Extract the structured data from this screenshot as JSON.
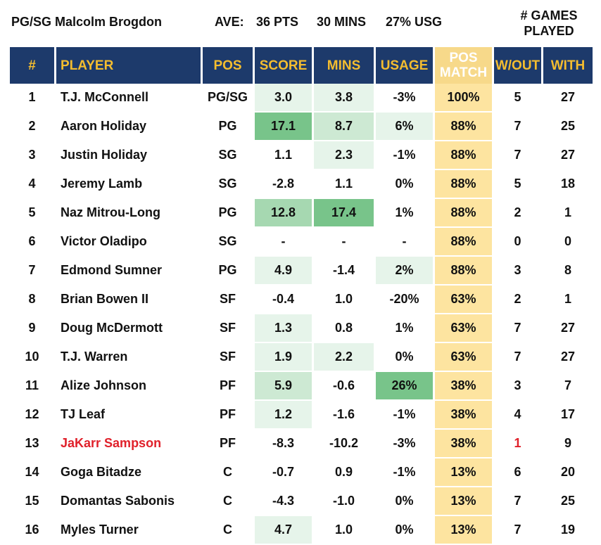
{
  "header": {
    "player_position": "PG/SG",
    "player_name": "Malcolm Brogdon",
    "ave_label": "AVE:",
    "pts": "36 PTS",
    "mins": "30 MINS",
    "usg": "27% USG",
    "games_played_label_1": "# GAMES",
    "games_played_label_2": "PLAYED"
  },
  "colors": {
    "header_bg": "#1d3a6b",
    "header_text": "#f4bd2f",
    "pos_match_bg": "#fde4a0",
    "highlight_red": "#e0202a",
    "green_1": "#e6f4ea",
    "green_2": "#cde9d3",
    "green_3": "#a6d8b1",
    "green_4": "#78c48a"
  },
  "table": {
    "columns": [
      "#",
      "PLAYER",
      "POS",
      "SCORE",
      "MINS",
      "USAGE",
      "POS MATCH",
      "W/OUT",
      "WITH"
    ],
    "rows": [
      {
        "n": "1",
        "player": "T.J. McConnell",
        "pos": "PG/SG",
        "score": "3.0",
        "mins": "3.8",
        "usage": "-3%",
        "match": "100%",
        "wout": "5",
        "with": "27",
        "score_level": 1,
        "mins_level": 1,
        "usage_level": 0,
        "red": false
      },
      {
        "n": "2",
        "player": "Aaron Holiday",
        "pos": "PG",
        "score": "17.1",
        "mins": "8.7",
        "usage": "6%",
        "match": "88%",
        "wout": "7",
        "with": "25",
        "score_level": 4,
        "mins_level": 2,
        "usage_level": 1,
        "red": false
      },
      {
        "n": "3",
        "player": "Justin Holiday",
        "pos": "SG",
        "score": "1.1",
        "mins": "2.3",
        "usage": "-1%",
        "match": "88%",
        "wout": "7",
        "with": "27",
        "score_level": 0,
        "mins_level": 1,
        "usage_level": 0,
        "red": false
      },
      {
        "n": "4",
        "player": "Jeremy Lamb",
        "pos": "SG",
        "score": "-2.8",
        "mins": "1.1",
        "usage": "0%",
        "match": "88%",
        "wout": "5",
        "with": "18",
        "score_level": 0,
        "mins_level": 0,
        "usage_level": 0,
        "red": false
      },
      {
        "n": "5",
        "player": "Naz Mitrou-Long",
        "pos": "PG",
        "score": "12.8",
        "mins": "17.4",
        "usage": "1%",
        "match": "88%",
        "wout": "2",
        "with": "1",
        "score_level": 3,
        "mins_level": 4,
        "usage_level": 0,
        "red": false
      },
      {
        "n": "6",
        "player": "Victor Oladipo",
        "pos": "SG",
        "score": "-",
        "mins": "-",
        "usage": "-",
        "match": "88%",
        "wout": "0",
        "with": "0",
        "score_level": 0,
        "mins_level": 0,
        "usage_level": 0,
        "red": false
      },
      {
        "n": "7",
        "player": "Edmond Sumner",
        "pos": "PG",
        "score": "4.9",
        "mins": "-1.4",
        "usage": "2%",
        "match": "88%",
        "wout": "3",
        "with": "8",
        "score_level": 1,
        "mins_level": 0,
        "usage_level": 1,
        "red": false
      },
      {
        "n": "8",
        "player": "Brian Bowen II",
        "pos": "SF",
        "score": "-0.4",
        "mins": "1.0",
        "usage": "-20%",
        "match": "63%",
        "wout": "2",
        "with": "1",
        "score_level": 0,
        "mins_level": 0,
        "usage_level": 0,
        "red": false
      },
      {
        "n": "9",
        "player": "Doug McDermott",
        "pos": "SF",
        "score": "1.3",
        "mins": "0.8",
        "usage": "1%",
        "match": "63%",
        "wout": "7",
        "with": "27",
        "score_level": 1,
        "mins_level": 0,
        "usage_level": 0,
        "red": false
      },
      {
        "n": "10",
        "player": "T.J. Warren",
        "pos": "SF",
        "score": "1.9",
        "mins": "2.2",
        "usage": "0%",
        "match": "63%",
        "wout": "7",
        "with": "27",
        "score_level": 1,
        "mins_level": 1,
        "usage_level": 0,
        "red": false
      },
      {
        "n": "11",
        "player": "Alize Johnson",
        "pos": "PF",
        "score": "5.9",
        "mins": "-0.6",
        "usage": "26%",
        "match": "38%",
        "wout": "3",
        "with": "7",
        "score_level": 2,
        "mins_level": 0,
        "usage_level": 4,
        "red": false
      },
      {
        "n": "12",
        "player": "TJ Leaf",
        "pos": "PF",
        "score": "1.2",
        "mins": "-1.6",
        "usage": "-1%",
        "match": "38%",
        "wout": "4",
        "with": "17",
        "score_level": 1,
        "mins_level": 0,
        "usage_level": 0,
        "red": false
      },
      {
        "n": "13",
        "player": "JaKarr Sampson",
        "pos": "PF",
        "score": "-8.3",
        "mins": "-10.2",
        "usage": "-3%",
        "match": "38%",
        "wout": "1",
        "with": "9",
        "score_level": 0,
        "mins_level": 0,
        "usage_level": 0,
        "red": true
      },
      {
        "n": "14",
        "player": "Goga Bitadze",
        "pos": "C",
        "score": "-0.7",
        "mins": "0.9",
        "usage": "-1%",
        "match": "13%",
        "wout": "6",
        "with": "20",
        "score_level": 0,
        "mins_level": 0,
        "usage_level": 0,
        "red": false
      },
      {
        "n": "15",
        "player": "Domantas Sabonis",
        "pos": "C",
        "score": "-4.3",
        "mins": "-1.0",
        "usage": "0%",
        "match": "13%",
        "wout": "7",
        "with": "25",
        "score_level": 0,
        "mins_level": 0,
        "usage_level": 0,
        "red": false
      },
      {
        "n": "16",
        "player": "Myles Turner",
        "pos": "C",
        "score": "4.7",
        "mins": "1.0",
        "usage": "0%",
        "match": "13%",
        "wout": "7",
        "with": "19",
        "score_level": 1,
        "mins_level": 0,
        "usage_level": 0,
        "red": false
      }
    ]
  }
}
